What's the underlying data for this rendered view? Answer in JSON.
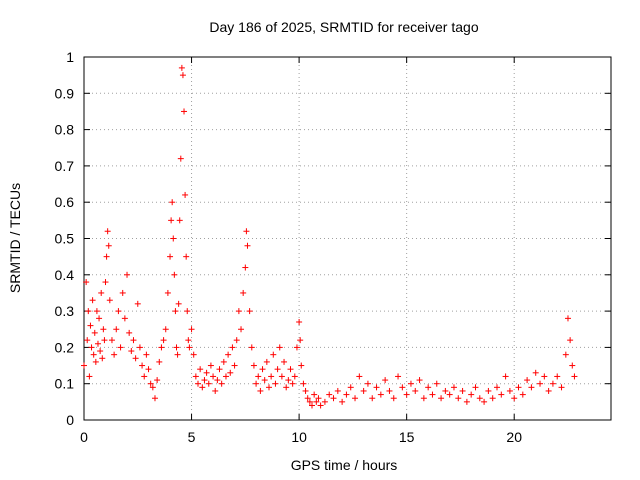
{
  "chart_data": {
    "type": "scatter",
    "title": "Day 186 of 2025, SRMTID for receiver tago",
    "xlabel": "GPS time / hours",
    "ylabel": "SRMTID / TECUs",
    "xlim": [
      0,
      24.5
    ],
    "ylim": [
      0,
      1
    ],
    "xticks": [
      0,
      5,
      10,
      15,
      20
    ],
    "xtick_labels": [
      "0",
      "5",
      "10",
      "15",
      "20"
    ],
    "yticks": [
      0,
      0.1,
      0.2,
      0.3,
      0.4,
      0.5,
      0.6,
      0.7,
      0.8,
      0.9,
      1
    ],
    "ytick_labels": [
      "0",
      "0.1",
      "0.2",
      "0.3",
      "0.4",
      "0.5",
      "0.6",
      "0.7",
      "0.8",
      "0.9",
      "1"
    ],
    "grid": true,
    "marker": "plus",
    "marker_color": "#ff0000",
    "series": [
      {
        "name": "SRMTID",
        "points": [
          [
            0.0,
            0.15
          ],
          [
            0.1,
            0.38
          ],
          [
            0.15,
            0.22
          ],
          [
            0.2,
            0.3
          ],
          [
            0.25,
            0.12
          ],
          [
            0.3,
            0.26
          ],
          [
            0.35,
            0.2
          ],
          [
            0.4,
            0.33
          ],
          [
            0.45,
            0.18
          ],
          [
            0.5,
            0.24
          ],
          [
            0.55,
            0.16
          ],
          [
            0.6,
            0.3
          ],
          [
            0.65,
            0.21
          ],
          [
            0.7,
            0.28
          ],
          [
            0.75,
            0.19
          ],
          [
            0.8,
            0.35
          ],
          [
            0.85,
            0.17
          ],
          [
            0.9,
            0.25
          ],
          [
            0.95,
            0.22
          ],
          [
            1.0,
            0.38
          ],
          [
            1.05,
            0.45
          ],
          [
            1.1,
            0.52
          ],
          [
            1.15,
            0.48
          ],
          [
            1.2,
            0.33
          ],
          [
            1.3,
            0.22
          ],
          [
            1.4,
            0.18
          ],
          [
            1.5,
            0.25
          ],
          [
            1.6,
            0.3
          ],
          [
            1.7,
            0.2
          ],
          [
            1.8,
            0.35
          ],
          [
            1.9,
            0.28
          ],
          [
            2.0,
            0.4
          ],
          [
            2.1,
            0.24
          ],
          [
            2.2,
            0.19
          ],
          [
            2.3,
            0.22
          ],
          [
            2.4,
            0.17
          ],
          [
            2.5,
            0.32
          ],
          [
            2.6,
            0.2
          ],
          [
            2.7,
            0.15
          ],
          [
            2.8,
            0.12
          ],
          [
            2.9,
            0.18
          ],
          [
            3.0,
            0.14
          ],
          [
            3.1,
            0.1
          ],
          [
            3.2,
            0.09
          ],
          [
            3.3,
            0.06
          ],
          [
            3.4,
            0.11
          ],
          [
            3.5,
            0.16
          ],
          [
            3.6,
            0.2
          ],
          [
            3.7,
            0.22
          ],
          [
            3.8,
            0.25
          ],
          [
            3.9,
            0.35
          ],
          [
            4.0,
            0.45
          ],
          [
            4.05,
            0.55
          ],
          [
            4.1,
            0.6
          ],
          [
            4.15,
            0.5
          ],
          [
            4.2,
            0.4
          ],
          [
            4.25,
            0.3
          ],
          [
            4.3,
            0.2
          ],
          [
            4.35,
            0.18
          ],
          [
            4.4,
            0.32
          ],
          [
            4.45,
            0.55
          ],
          [
            4.5,
            0.72
          ],
          [
            4.55,
            0.97
          ],
          [
            4.6,
            0.95
          ],
          [
            4.65,
            0.85
          ],
          [
            4.7,
            0.62
          ],
          [
            4.75,
            0.45
          ],
          [
            4.8,
            0.3
          ],
          [
            4.85,
            0.22
          ],
          [
            4.9,
            0.2
          ],
          [
            5.0,
            0.25
          ],
          [
            5.1,
            0.18
          ],
          [
            5.2,
            0.12
          ],
          [
            5.3,
            0.1
          ],
          [
            5.4,
            0.14
          ],
          [
            5.5,
            0.09
          ],
          [
            5.6,
            0.11
          ],
          [
            5.7,
            0.13
          ],
          [
            5.8,
            0.1
          ],
          [
            5.9,
            0.15
          ],
          [
            6.0,
            0.12
          ],
          [
            6.1,
            0.08
          ],
          [
            6.2,
            0.11
          ],
          [
            6.3,
            0.14
          ],
          [
            6.4,
            0.1
          ],
          [
            6.5,
            0.16
          ],
          [
            6.6,
            0.12
          ],
          [
            6.7,
            0.18
          ],
          [
            6.8,
            0.13
          ],
          [
            6.9,
            0.2
          ],
          [
            7.0,
            0.15
          ],
          [
            7.1,
            0.22
          ],
          [
            7.2,
            0.3
          ],
          [
            7.3,
            0.25
          ],
          [
            7.4,
            0.35
          ],
          [
            7.5,
            0.42
          ],
          [
            7.55,
            0.52
          ],
          [
            7.6,
            0.48
          ],
          [
            7.7,
            0.3
          ],
          [
            7.8,
            0.2
          ],
          [
            7.9,
            0.15
          ],
          [
            8.0,
            0.1
          ],
          [
            8.1,
            0.12
          ],
          [
            8.2,
            0.08
          ],
          [
            8.3,
            0.14
          ],
          [
            8.4,
            0.11
          ],
          [
            8.5,
            0.16
          ],
          [
            8.6,
            0.09
          ],
          [
            8.7,
            0.12
          ],
          [
            8.8,
            0.18
          ],
          [
            8.9,
            0.1
          ],
          [
            9.0,
            0.14
          ],
          [
            9.1,
            0.2
          ],
          [
            9.2,
            0.12
          ],
          [
            9.3,
            0.16
          ],
          [
            9.4,
            0.09
          ],
          [
            9.5,
            0.11
          ],
          [
            9.6,
            0.14
          ],
          [
            9.7,
            0.1
          ],
          [
            9.8,
            0.12
          ],
          [
            9.9,
            0.2
          ],
          [
            10.0,
            0.27
          ],
          [
            10.05,
            0.22
          ],
          [
            10.1,
            0.15
          ],
          [
            10.2,
            0.1
          ],
          [
            10.3,
            0.08
          ],
          [
            10.4,
            0.06
          ],
          [
            10.5,
            0.05
          ],
          [
            10.6,
            0.04
          ],
          [
            10.7,
            0.07
          ],
          [
            10.8,
            0.05
          ],
          [
            10.9,
            0.06
          ],
          [
            11.0,
            0.04
          ],
          [
            11.2,
            0.05
          ],
          [
            11.4,
            0.07
          ],
          [
            11.6,
            0.06
          ],
          [
            11.8,
            0.08
          ],
          [
            12.0,
            0.05
          ],
          [
            12.2,
            0.07
          ],
          [
            12.4,
            0.09
          ],
          [
            12.6,
            0.06
          ],
          [
            12.8,
            0.12
          ],
          [
            13.0,
            0.08
          ],
          [
            13.2,
            0.1
          ],
          [
            13.4,
            0.06
          ],
          [
            13.6,
            0.09
          ],
          [
            13.8,
            0.07
          ],
          [
            14.0,
            0.11
          ],
          [
            14.2,
            0.08
          ],
          [
            14.4,
            0.06
          ],
          [
            14.6,
            0.12
          ],
          [
            14.8,
            0.09
          ],
          [
            15.0,
            0.07
          ],
          [
            15.2,
            0.1
          ],
          [
            15.4,
            0.08
          ],
          [
            15.6,
            0.11
          ],
          [
            15.8,
            0.06
          ],
          [
            16.0,
            0.09
          ],
          [
            16.2,
            0.07
          ],
          [
            16.4,
            0.1
          ],
          [
            16.6,
            0.06
          ],
          [
            16.8,
            0.08
          ],
          [
            17.0,
            0.07
          ],
          [
            17.2,
            0.09
          ],
          [
            17.4,
            0.06
          ],
          [
            17.6,
            0.08
          ],
          [
            17.8,
            0.05
          ],
          [
            18.0,
            0.07
          ],
          [
            18.2,
            0.09
          ],
          [
            18.4,
            0.06
          ],
          [
            18.6,
            0.05
          ],
          [
            18.8,
            0.08
          ],
          [
            19.0,
            0.06
          ],
          [
            19.2,
            0.09
          ],
          [
            19.4,
            0.07
          ],
          [
            19.6,
            0.12
          ],
          [
            19.8,
            0.08
          ],
          [
            20.0,
            0.06
          ],
          [
            20.2,
            0.09
          ],
          [
            20.4,
            0.07
          ],
          [
            20.6,
            0.11
          ],
          [
            20.8,
            0.09
          ],
          [
            21.0,
            0.13
          ],
          [
            21.2,
            0.1
          ],
          [
            21.4,
            0.12
          ],
          [
            21.6,
            0.08
          ],
          [
            21.8,
            0.1
          ],
          [
            22.0,
            0.12
          ],
          [
            22.2,
            0.09
          ],
          [
            22.4,
            0.18
          ],
          [
            22.5,
            0.28
          ],
          [
            22.6,
            0.22
          ],
          [
            22.7,
            0.15
          ],
          [
            22.8,
            0.12
          ]
        ]
      }
    ]
  }
}
